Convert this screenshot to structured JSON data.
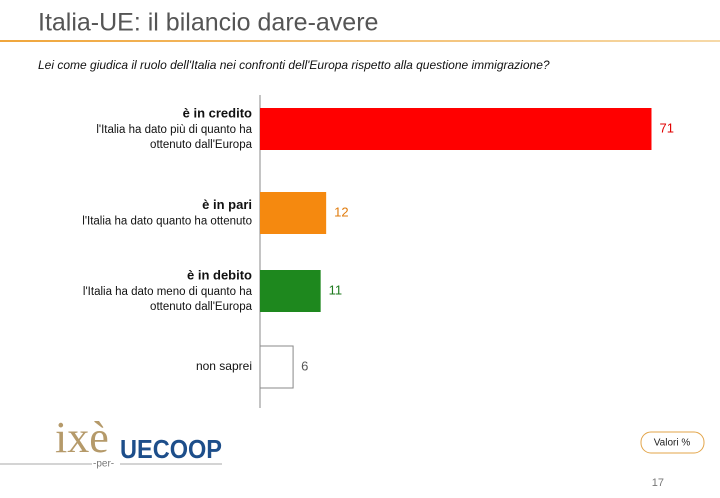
{
  "chart_data": {
    "type": "bar",
    "orientation": "horizontal",
    "title": "Italia-UE: il bilancio dare-avere",
    "subtitle": "Lei come giudica il ruolo dell'Italia nei confronti dell'Europa rispetto alla questione immigrazione?",
    "categories": [
      "è in credito",
      "è in pari",
      "è in debito",
      "non saprei"
    ],
    "descriptions": [
      [
        "l'Italia ha dato più di quanto ha",
        "ottenuto dall'Europa"
      ],
      [
        "l'Italia ha dato quanto ha ottenuto"
      ],
      [
        "l'Italia ha dato meno di quanto ha",
        "ottenuto dall'Europa"
      ],
      null
    ],
    "values": [
      71,
      12,
      11,
      6
    ],
    "colors": [
      "#ff0000",
      "#f5890f",
      "#1e881e",
      "#ffffff"
    ],
    "label_colors": [
      "#e00000",
      "#e07a0a",
      "#1e7a1e",
      "#555555"
    ],
    "xlim": [
      0,
      72
    ]
  },
  "footer": {
    "logo_left": "ixè",
    "connector": "-per-",
    "logo_right": "UECOOP",
    "badge": "Valori %",
    "page_number": "17"
  }
}
